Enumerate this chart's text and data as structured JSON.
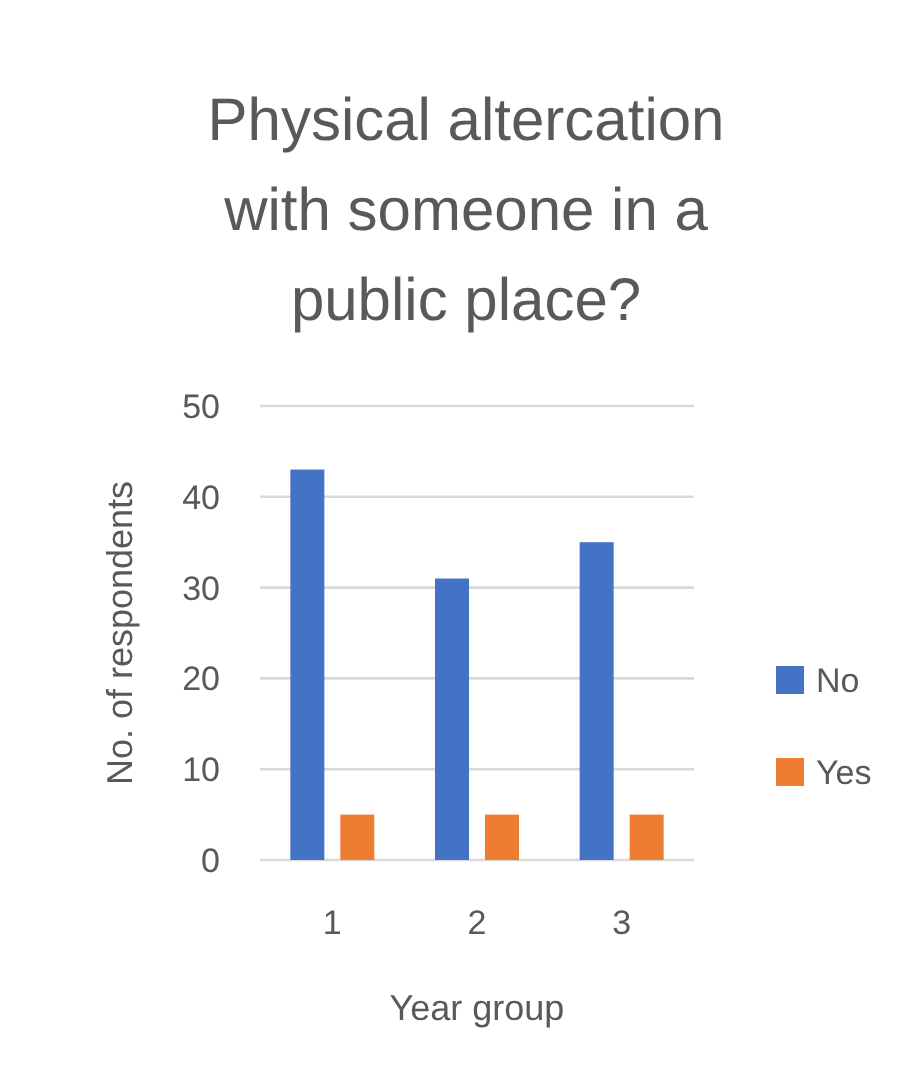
{
  "chart_data": {
    "type": "bar",
    "title": "Physical altercation with someone in a public place?",
    "xlabel": "Year group",
    "ylabel": "No. of respondents",
    "categories": [
      "1",
      "2",
      "3"
    ],
    "series": [
      {
        "name": "No",
        "color": "#4472c4",
        "values": [
          43,
          31,
          35
        ]
      },
      {
        "name": "Yes",
        "color": "#ed7d31",
        "values": [
          5,
          5,
          5
        ]
      }
    ],
    "ylim": [
      0,
      50
    ],
    "yticks": [
      0,
      10,
      20,
      30,
      40,
      50
    ],
    "grid": "y",
    "legend": "right"
  }
}
